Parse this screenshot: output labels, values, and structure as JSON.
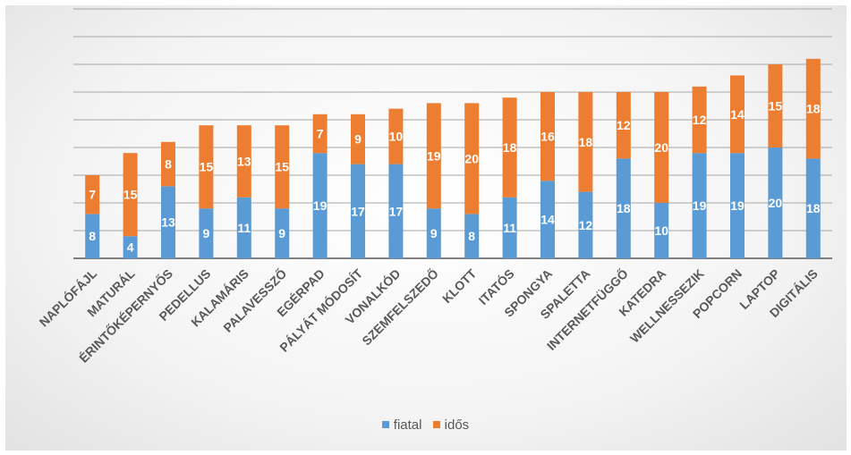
{
  "colors": {
    "fiatal": "#5b9bd5",
    "idos": "#ed7d31",
    "grid": "#a6a6a6",
    "label": "#595959"
  },
  "chart_data": {
    "type": "bar",
    "stacked": true,
    "categories": [
      "NAPLÓFÁJL",
      "MATURÁL",
      "ÉRINTŐKÉPERNYŐS",
      "PEDELLUS",
      "KALAMÁRIS",
      "PALAVESSZŐ",
      "EGÉRPAD",
      "PÁLYÁT MÓDOSÍT",
      "VONALKÓD",
      "SZEMFELSZEDŐ",
      "KLOTT",
      "ITATÓS",
      "SPONGYA",
      "SPALETTA",
      "INTERNETFÜGGŐ",
      "KATEDRA",
      "WELLNESSEZIK",
      "POPCORN",
      "LAPTOP",
      "DIGITÁLIS"
    ],
    "series": [
      {
        "name": "fiatal",
        "color": "#5b9bd5",
        "values": [
          8,
          4,
          13,
          9,
          11,
          9,
          19,
          17,
          17,
          9,
          8,
          11,
          14,
          12,
          18,
          10,
          19,
          19,
          20,
          18
        ]
      },
      {
        "name": "idős",
        "color": "#ed7d31",
        "values": [
          7,
          15,
          8,
          15,
          13,
          15,
          7,
          9,
          10,
          19,
          20,
          18,
          16,
          18,
          12,
          20,
          12,
          14,
          15,
          18
        ]
      }
    ],
    "ylim": [
      0,
      45
    ],
    "ytick_step": 5,
    "grid": true,
    "show_y_tick_labels": false,
    "data_labels": true,
    "legend_position": "bottom",
    "title": "",
    "xlabel": "",
    "ylabel": ""
  },
  "legend": {
    "items": [
      "fiatal",
      "idős"
    ]
  }
}
